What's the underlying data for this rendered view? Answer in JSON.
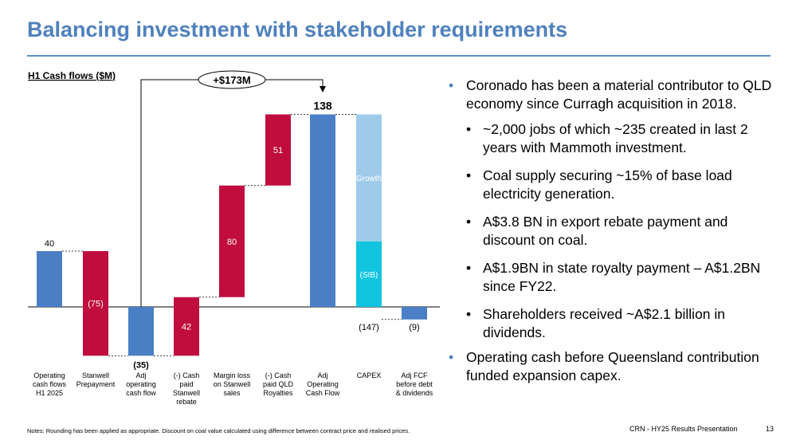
{
  "title": "Balancing investment with stakeholder requirements",
  "colors": {
    "title": "#4f81bd",
    "positive": "#4a7fc6",
    "negative": "#c00d3e",
    "growth": "#9ecbea",
    "sib": "#10c4e0"
  },
  "chart_data": {
    "type": "bar",
    "subtitle": "H1 Cash flows ($M)",
    "bridge_label": "+$173M",
    "categories": [
      "Operating cash flows H1 2025",
      "Stanwell Prepayment",
      "Adj operating cash flow",
      "(-) Cash paid Stanwell rebate",
      "Margin loss on Stanwell sales",
      "(-) Cash paid QLD Royalties",
      "Adj Operating Cash Flow",
      "CAPEX",
      "Adj FCF before debt & dividends"
    ],
    "category_lines": [
      [
        "Operating",
        "cash flows",
        "H1 2025"
      ],
      [
        "Stanwell",
        "Prepayment"
      ],
      [
        "Adj",
        "operating",
        "cash flow"
      ],
      [
        "(-) Cash",
        "paid",
        "Stanwell",
        "rebate"
      ],
      [
        "Margin loss",
        "on Stanwell",
        "sales"
      ],
      [
        "(-) Cash",
        "paid QLD",
        "Royalties"
      ],
      [
        "Adj",
        "Operating",
        "Cash Flow"
      ],
      [
        "CAPEX"
      ],
      [
        "Adj FCF",
        "before debt",
        "& dividends"
      ]
    ],
    "bars": [
      {
        "start": 0,
        "end": 40,
        "label": "40",
        "label_pos": "above",
        "style": "positive"
      },
      {
        "start": 40,
        "end": -35,
        "label": "(75)",
        "label_pos": "inside",
        "style": "negative"
      },
      {
        "start": 0,
        "end": -35,
        "label": "(35)",
        "label_pos": "below",
        "style": "positive",
        "bold": true
      },
      {
        "start": -35,
        "end": 7,
        "label": "42",
        "label_pos": "inside",
        "style": "negative"
      },
      {
        "start": 7,
        "end": 87,
        "label": "80",
        "label_pos": "inside",
        "style": "negative"
      },
      {
        "start": 87,
        "end": 138,
        "label": "51",
        "label_pos": "inside",
        "style": "negative"
      },
      {
        "start": 0,
        "end": 138,
        "label": "138",
        "label_pos": "above",
        "style": "positive",
        "bold": true
      },
      {
        "start": 138,
        "end": -9,
        "label": "(147)",
        "label_pos": "below-axis",
        "style": "capex"
      },
      {
        "start": 0,
        "end": -9,
        "label": "(9)",
        "label_pos": "below-axis",
        "style": "positive"
      }
    ],
    "capex_segments": [
      {
        "name": "(Growth)",
        "start": 138,
        "end": 47
      },
      {
        "name": "(SIB)",
        "start": 47,
        "end": 0
      }
    ],
    "ylim": [
      -35,
      138
    ]
  },
  "bullets": [
    {
      "level": 1,
      "text": "Coronado has been a material contributor to QLD economy since Curragh acquisition in 2018."
    },
    {
      "level": 2,
      "text": "~2,000 jobs of which ~235 created in last 2 years with Mammoth investment."
    },
    {
      "level": 2,
      "text": "Coal supply securing ~15% of base load electricity generation."
    },
    {
      "level": 2,
      "text": "A$3.8 BN in export rebate payment and discount on coal."
    },
    {
      "level": 2,
      "text": "A$1.9BN in state royalty payment – A$1.2BN since FY22."
    },
    {
      "level": 2,
      "text": "Shareholders received ~A$2.1 billion in dividends."
    },
    {
      "level": 1,
      "text": "Operating cash before Queensland contribution funded expansion capex."
    }
  ],
  "notes": "Notes: Rounding has been applied as appropriate. Discount on coal value calculated using difference between contract price and realised prices.",
  "footer": "CRN - HY25 Results Presentation",
  "page_number": "13"
}
